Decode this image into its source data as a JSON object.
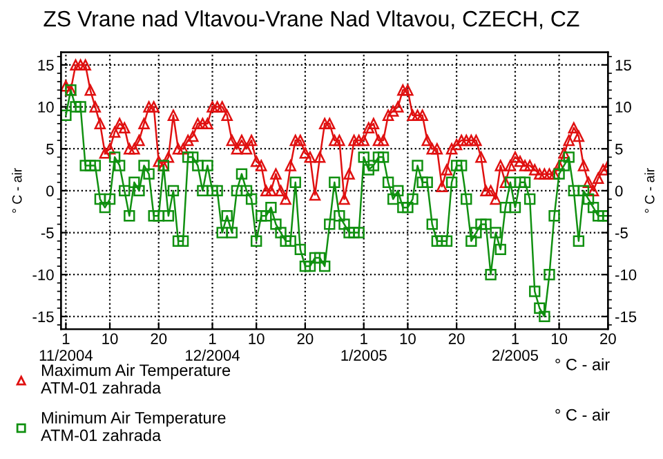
{
  "chart_data": {
    "type": "line",
    "title": "ZS Vrane nad Vltavou-Vrane Nad Vltavou, CZECH, CZ",
    "ylabel": "° C - air",
    "y2label": "° C - air",
    "x": [
      "2004-11-01",
      "2004-11-02",
      "2004-11-03",
      "2004-11-04",
      "2004-11-05",
      "2004-11-06",
      "2004-11-07",
      "2004-11-08",
      "2004-11-09",
      "2004-11-10",
      "2004-11-11",
      "2004-11-12",
      "2004-11-13",
      "2004-11-14",
      "2004-11-15",
      "2004-11-16",
      "2004-11-17",
      "2004-11-18",
      "2004-11-19",
      "2004-11-20",
      "2004-11-21",
      "2004-11-22",
      "2004-11-23",
      "2004-11-24",
      "2004-11-25",
      "2004-11-26",
      "2004-11-27",
      "2004-11-28",
      "2004-11-29",
      "2004-11-30",
      "2004-12-01",
      "2004-12-02",
      "2004-12-03",
      "2004-12-04",
      "2004-12-05",
      "2004-12-06",
      "2004-12-07",
      "2004-12-08",
      "2004-12-09",
      "2004-12-10",
      "2004-12-11",
      "2004-12-12",
      "2004-12-13",
      "2004-12-14",
      "2004-12-15",
      "2004-12-16",
      "2004-12-17",
      "2004-12-18",
      "2004-12-19",
      "2004-12-20",
      "2004-12-21",
      "2004-12-22",
      "2004-12-23",
      "2004-12-24",
      "2004-12-25",
      "2004-12-26",
      "2004-12-27",
      "2004-12-28",
      "2004-12-29",
      "2004-12-30",
      "2004-12-31",
      "2005-01-01",
      "2005-01-02",
      "2005-01-03",
      "2005-01-04",
      "2005-01-05",
      "2005-01-06",
      "2005-01-07",
      "2005-01-08",
      "2005-01-09",
      "2005-01-10",
      "2005-01-11",
      "2005-01-12",
      "2005-01-13",
      "2005-01-14",
      "2005-01-15",
      "2005-01-16",
      "2005-01-17",
      "2005-01-18",
      "2005-01-19",
      "2005-01-20",
      "2005-01-21",
      "2005-01-22",
      "2005-01-23",
      "2005-01-24",
      "2005-01-25",
      "2005-01-26",
      "2005-01-27",
      "2005-01-28",
      "2005-01-29",
      "2005-01-30",
      "2005-01-31",
      "2005-02-01",
      "2005-02-02",
      "2005-02-03",
      "2005-02-04",
      "2005-02-05",
      "2005-02-06",
      "2005-02-07",
      "2005-02-08",
      "2005-02-09",
      "2005-02-10",
      "2005-02-11",
      "2005-02-12",
      "2005-02-13",
      "2005-02-14",
      "2005-02-15",
      "2005-02-16",
      "2005-02-17",
      "2005-02-18",
      "2005-02-19",
      "2005-02-20"
    ],
    "series": [
      {
        "name": "Maximum Air Temperature\nATM-01 zahrada",
        "color": "#e01010",
        "marker": "triangle",
        "values": [
          12.5,
          12,
          15,
          15,
          15,
          12,
          10,
          8,
          4.5,
          5,
          7,
          8,
          7.5,
          5,
          5,
          6,
          8,
          10,
          10,
          3.5,
          3,
          4,
          9,
          5,
          5,
          6,
          6.5,
          8,
          8,
          8,
          10,
          10,
          10,
          9,
          6,
          5,
          6,
          5,
          6,
          3.5,
          3,
          0,
          0,
          2,
          0,
          -1,
          3,
          6,
          6,
          4.5,
          4,
          -0.5,
          4,
          8,
          8,
          6,
          6,
          -1,
          2,
          6,
          6,
          6,
          7.5,
          8,
          6,
          6,
          9,
          9.5,
          10,
          12,
          12,
          9,
          9,
          9,
          6,
          5,
          5,
          0.5,
          2.5,
          5,
          5.5,
          6,
          6,
          6,
          6,
          4,
          0,
          0,
          -1,
          3,
          1,
          3,
          4,
          3.5,
          3,
          3,
          2.5,
          2,
          2,
          2,
          2,
          3,
          4.5,
          6,
          7.5,
          6.5,
          3,
          1,
          0,
          1.5,
          2.5,
          3
        ]
      },
      {
        "name": "Minimum Air Temperature\nATM-01 zahrada",
        "color": "#109010",
        "marker": "square",
        "values": [
          9,
          12,
          10,
          10,
          3,
          3,
          3,
          -1,
          -2,
          -1,
          4,
          3,
          0,
          -3,
          1,
          0,
          3,
          2,
          -3,
          -3,
          3,
          -3,
          0,
          -6,
          -6,
          4,
          4,
          3,
          0,
          3,
          0,
          0,
          -5,
          -3,
          -5,
          0,
          2,
          0,
          -1,
          -6,
          -3,
          -3,
          -2,
          -4,
          -5,
          -6,
          -6,
          1,
          -7,
          -9,
          -9,
          -8,
          -8,
          -9,
          -4,
          1,
          -3,
          -4,
          -5,
          -5,
          -5,
          4,
          2.5,
          3,
          4,
          4,
          1,
          -1,
          0,
          -2,
          -2,
          -1,
          3,
          1,
          1,
          -4,
          -6,
          -6,
          -6,
          1,
          3,
          3,
          -1,
          -6,
          -5,
          -4,
          -4,
          -10,
          -5,
          -7,
          -2,
          1,
          -2,
          1,
          1,
          -1,
          -12,
          -14,
          -15,
          -10,
          -3,
          2,
          3,
          4,
          0,
          -6,
          0,
          -1,
          -2,
          -3,
          -3,
          -3
        ]
      }
    ],
    "xlim": [
      "2004-10-31",
      "2005-02-20"
    ],
    "xticks": [
      {
        "value": "2004-11-01",
        "label": "1\n11/2004"
      },
      {
        "value": "2004-11-10",
        "label": "10"
      },
      {
        "value": "2004-11-20",
        "label": "20"
      },
      {
        "value": "2004-12-01",
        "label": "1\n12/2004"
      },
      {
        "value": "2004-12-10",
        "label": "10"
      },
      {
        "value": "2004-12-20",
        "label": "20"
      },
      {
        "value": "2005-01-01",
        "label": "1\n1/2005"
      },
      {
        "value": "2005-01-10",
        "label": "10"
      },
      {
        "value": "2005-01-20",
        "label": "20"
      },
      {
        "value": "2005-02-01",
        "label": "1\n2/2005"
      },
      {
        "value": "2005-02-10",
        "label": "10"
      },
      {
        "value": "2005-02-20",
        "label": "20"
      }
    ],
    "ylim": [
      -16.5,
      16.5
    ],
    "yticks": [
      -15,
      -10,
      -5,
      0,
      5,
      10,
      15
    ],
    "y2lim": [
      -16.5,
      16.5
    ],
    "y2ticks": [
      -15,
      -10,
      -5,
      0,
      5,
      10,
      15
    ],
    "grid": true,
    "legend": "bottom",
    "line_style": "solid",
    "annotations": [
      "° C - air",
      "° C - air"
    ]
  }
}
